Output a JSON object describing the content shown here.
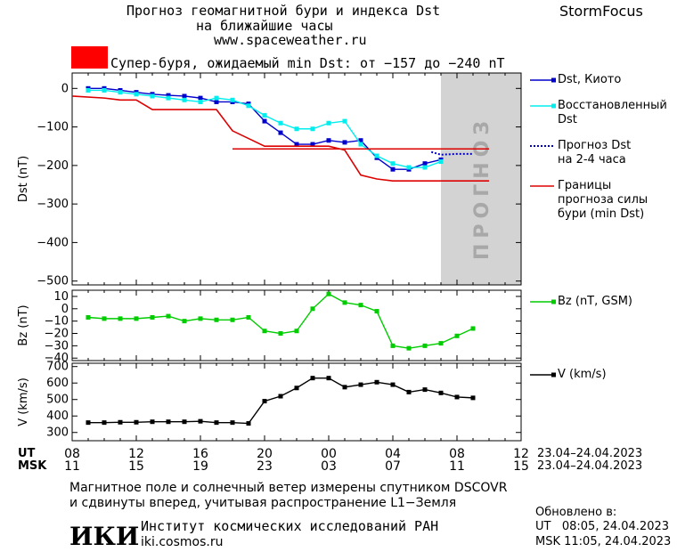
{
  "header": {
    "title_line1": "Прогноз геомагнитной бури и индекса Dst",
    "title_line2": "на ближайшие часы",
    "url": "www.spaceweather.ru",
    "brand": "StormFocus"
  },
  "severity": {
    "text": "Супер-буря, ожидаемый min Dst: от −157 до −240 nT",
    "color": "#ff0000"
  },
  "forecast_zone_label": "ПРОГНОЗ",
  "legend": {
    "dst_kyoto": "Dst, Киото",
    "restored_1": "Восстановленный",
    "restored_2": "Dst",
    "forecast_1": "Прогноз Dst",
    "forecast_2": "на 2-4 часа",
    "bounds_1": "Границы",
    "bounds_2": "прогноза силы",
    "bounds_3": "бури (min Dst)",
    "bz": "Bz (nT, GSM)",
    "v": "V (km/s)"
  },
  "time_axis": {
    "ut_label": "UT",
    "msk_label": "MSK",
    "ut_ticks": [
      "08",
      "12",
      "16",
      "20",
      "00",
      "04",
      "08",
      "12"
    ],
    "msk_ticks": [
      "11",
      "15",
      "19",
      "23",
      "03",
      "07",
      "11",
      "15"
    ],
    "date_range_ut": "23.04–24.04.2023",
    "date_range_msk": "23.04–24.04.2023"
  },
  "chart_data": [
    {
      "type": "line",
      "panel": "dst",
      "ylabel": "Dst (nT)",
      "ylim": [
        -510,
        40
      ],
      "yticks": [
        0,
        -100,
        -200,
        -300,
        -400,
        -500
      ],
      "xlim_hours": [
        0,
        28
      ],
      "forecast_zone_hours": [
        23,
        28
      ],
      "series": [
        {
          "name": "Dst, Киото",
          "color": "#0000cc",
          "x": [
            1,
            2,
            3,
            4,
            5,
            6,
            7,
            8,
            9,
            10,
            11,
            12,
            13,
            14,
            15,
            16,
            17,
            18,
            19,
            20,
            21,
            22,
            23
          ],
          "y": [
            0,
            0,
            -5,
            -10,
            -15,
            -18,
            -20,
            -25,
            -35,
            -35,
            -40,
            -85,
            -115,
            -145,
            -145,
            -135,
            -140,
            -135,
            -180,
            -210,
            -210,
            -195,
            -185
          ]
        },
        {
          "name": "Восстановленный Dst",
          "color": "#00eeee",
          "x": [
            1,
            2,
            3,
            4,
            5,
            6,
            7,
            8,
            9,
            10,
            11,
            12,
            13,
            14,
            15,
            16,
            17,
            18,
            19,
            20,
            21,
            22,
            23
          ],
          "y": [
            -5,
            -5,
            -10,
            -15,
            -20,
            -25,
            -30,
            -35,
            -25,
            -30,
            -45,
            -70,
            -90,
            -105,
            -105,
            -90,
            -85,
            -145,
            -175,
            -195,
            -205,
            -205,
            -190
          ]
        },
        {
          "name": "Прогноз Dst на 2-4 часа",
          "color": "#0000cc",
          "x": [
            22.4,
            23,
            24,
            25
          ],
          "y": [
            -165,
            -172,
            -170,
            -170
          ]
        },
        {
          "name": "Границы прогноза силы бури (min Dst)",
          "color": "#dd0000",
          "x": [
            0,
            2,
            3,
            4,
            5,
            9,
            10,
            11,
            12,
            13,
            14,
            15,
            16,
            17,
            18,
            19,
            20,
            21,
            22,
            23,
            24,
            25,
            26
          ],
          "y": [
            -20,
            -25,
            -30,
            -30,
            -55,
            -55,
            -110,
            -130,
            -150,
            -150,
            -150,
            -150,
            -150,
            -160,
            -225,
            -235,
            -240,
            -240,
            -240,
            -240,
            -240,
            -240,
            -240
          ]
        },
        {
          "name": "Границы прогноза силы бури (min Dst) верх",
          "color": "#dd0000",
          "x": [
            10,
            26
          ],
          "y": [
            -157,
            -157
          ]
        }
      ]
    },
    {
      "type": "line",
      "panel": "bz",
      "ylabel": "Bz (nT)",
      "ylim": [
        -42,
        15
      ],
      "yticks": [
        10,
        0,
        -10,
        -20,
        -30,
        -40
      ],
      "xlim_hours": [
        0,
        28
      ],
      "series": [
        {
          "name": "Bz (nT, GSM)",
          "color": "#00cc00",
          "x": [
            1,
            2,
            3,
            4,
            5,
            6,
            7,
            8,
            9,
            10,
            11,
            12,
            13,
            14,
            15,
            16,
            17,
            18,
            19,
            20,
            21,
            22,
            23,
            24,
            25
          ],
          "y": [
            -7,
            -8,
            -8,
            -8,
            -7,
            -6,
            -10,
            -8,
            -9,
            -9,
            -7,
            -18,
            -20,
            -18,
            0,
            12,
            5,
            3,
            -2,
            -30,
            -32,
            -30,
            -28,
            -22,
            -16
          ]
        }
      ]
    },
    {
      "type": "line",
      "panel": "v",
      "ylabel": "V (km/s)",
      "ylim": [
        250,
        720
      ],
      "yticks": [
        700,
        600,
        500,
        400,
        300
      ],
      "xlim_hours": [
        0,
        28
      ],
      "series": [
        {
          "name": "V (km/s)",
          "color": "#000000",
          "x": [
            1,
            2,
            3,
            4,
            5,
            6,
            7,
            8,
            9,
            10,
            11,
            12,
            13,
            14,
            15,
            16,
            17,
            18,
            19,
            20,
            21,
            22,
            23,
            24,
            25
          ],
          "y": [
            360,
            360,
            362,
            362,
            365,
            365,
            365,
            368,
            360,
            360,
            355,
            490,
            520,
            570,
            630,
            630,
            575,
            590,
            605,
            590,
            545,
            560,
            540,
            515,
            510
          ]
        }
      ]
    }
  ],
  "footer": {
    "note_line1": "Магнитное поле и солнечный ветер измерены спутником DSCOVR",
    "note_line2": "и сдвинуты вперед, учитывая распространение L1−Земля",
    "logo": "ИКИ",
    "institute": "Институт космических исследований РАН",
    "site": "iki.cosmos.ru",
    "updated_label": "Обновлено в:",
    "updated_ut": "UT   08:05, 24.04.2023",
    "updated_msk": "MSK 11:05, 24.04.2023"
  }
}
